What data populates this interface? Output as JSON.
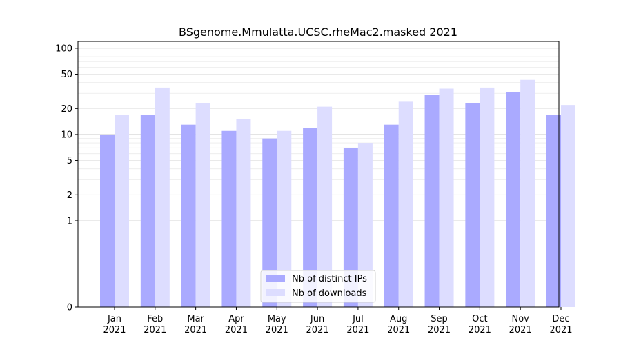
{
  "chart_data": {
    "type": "bar",
    "title": "BSgenome.Mmulatta.UCSC.rheMac2.masked 2021",
    "xlabel": "",
    "ylabel": "",
    "categories": [
      "Jan\n2021",
      "Feb\n2021",
      "Mar\n2021",
      "Apr\n2021",
      "May\n2021",
      "Jun\n2021",
      "Jul\n2021",
      "Aug\n2021",
      "Sep\n2021",
      "Oct\n2021",
      "Nov\n2021",
      "Dec\n2021"
    ],
    "series": [
      {
        "name": "Nb of distinct IPs",
        "color": "#aaaaff",
        "values": [
          10,
          17,
          13,
          11,
          9,
          12,
          7,
          13,
          29,
          23,
          31,
          17
        ]
      },
      {
        "name": "Nb of downloads",
        "color": "#ddddff",
        "values": [
          17,
          35,
          23,
          15,
          11,
          21,
          8,
          24,
          34,
          35,
          43,
          22
        ]
      }
    ],
    "y_scale": "symlog",
    "ylim": [
      0,
      120
    ],
    "y_ticks": [
      0,
      1,
      2,
      5,
      10,
      20,
      50,
      100
    ],
    "grid": true,
    "legend_position": "bottom-center"
  }
}
